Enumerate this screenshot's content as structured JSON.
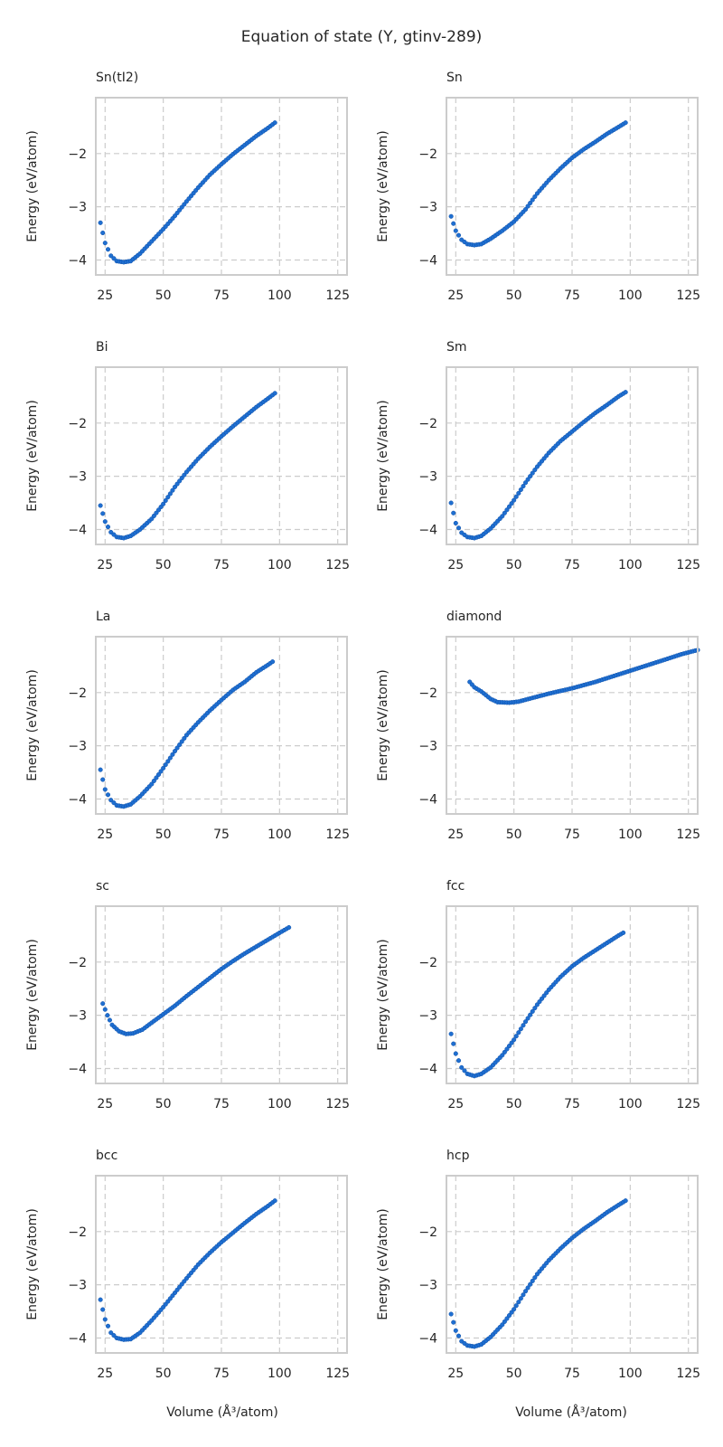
{
  "figure": {
    "title": "Equation of state (Y, gtinv-289)",
    "xlabel": "Volume (Å³/atom)",
    "ylabel": "Energy (eV/atom)",
    "marker_color": "#1f6fd1"
  },
  "chart_data": [
    {
      "type": "scatter",
      "title": "Sn(tI2)",
      "xlim": [
        21,
        129
      ],
      "ylim": [
        -4.28,
        -0.95
      ],
      "xticks": [
        25,
        50,
        75,
        100,
        125
      ],
      "yticks": [
        -4,
        -3,
        -2
      ],
      "xtick_labels": [
        "25",
        "50",
        "75",
        "100",
        "125"
      ],
      "ytick_labels": [
        "−4",
        "−3",
        "−2"
      ],
      "grid": true,
      "anchors": [
        [
          23,
          -3.3
        ],
        [
          25,
          -3.68
        ],
        [
          27.5,
          -3.92
        ],
        [
          30,
          -4.02
        ],
        [
          33,
          -4.04
        ],
        [
          36,
          -4.02
        ],
        [
          40,
          -3.88
        ],
        [
          45,
          -3.65
        ],
        [
          50,
          -3.42
        ],
        [
          55,
          -3.17
        ],
        [
          60,
          -2.9
        ],
        [
          65,
          -2.64
        ],
        [
          70,
          -2.4
        ],
        [
          75,
          -2.2
        ],
        [
          80,
          -2.01
        ],
        [
          85,
          -1.84
        ],
        [
          90,
          -1.67
        ],
        [
          95,
          -1.52
        ],
        [
          98,
          -1.42
        ]
      ]
    },
    {
      "type": "scatter",
      "title": "Sn",
      "xlim": [
        21,
        129
      ],
      "ylim": [
        -4.28,
        -0.95
      ],
      "xticks": [
        25,
        50,
        75,
        100,
        125
      ],
      "yticks": [
        -4,
        -3,
        -2
      ],
      "xtick_labels": [
        "25",
        "50",
        "75",
        "100",
        "125"
      ],
      "ytick_labels": [
        "−4",
        "−3",
        "−2"
      ],
      "grid": true,
      "anchors": [
        [
          23,
          -3.18
        ],
        [
          25,
          -3.45
        ],
        [
          27.5,
          -3.62
        ],
        [
          30,
          -3.7
        ],
        [
          33,
          -3.72
        ],
        [
          36,
          -3.7
        ],
        [
          40,
          -3.6
        ],
        [
          45,
          -3.45
        ],
        [
          50,
          -3.28
        ],
        [
          55,
          -3.05
        ],
        [
          60,
          -2.75
        ],
        [
          65,
          -2.5
        ],
        [
          70,
          -2.28
        ],
        [
          75,
          -2.08
        ],
        [
          80,
          -1.92
        ],
        [
          85,
          -1.78
        ],
        [
          90,
          -1.63
        ],
        [
          95,
          -1.5
        ],
        [
          98,
          -1.42
        ]
      ]
    },
    {
      "type": "scatter",
      "title": "Bi",
      "xlim": [
        21,
        129
      ],
      "ylim": [
        -4.28,
        -0.95
      ],
      "xticks": [
        25,
        50,
        75,
        100,
        125
      ],
      "yticks": [
        -4,
        -3,
        -2
      ],
      "xtick_labels": [
        "25",
        "50",
        "75",
        "100",
        "125"
      ],
      "ytick_labels": [
        "−4",
        "−3",
        "−2"
      ],
      "grid": true,
      "anchors": [
        [
          23,
          -3.55
        ],
        [
          25,
          -3.85
        ],
        [
          27.5,
          -4.05
        ],
        [
          30,
          -4.14
        ],
        [
          33,
          -4.16
        ],
        [
          36,
          -4.12
        ],
        [
          40,
          -4.0
        ],
        [
          45,
          -3.8
        ],
        [
          50,
          -3.52
        ],
        [
          55,
          -3.2
        ],
        [
          60,
          -2.92
        ],
        [
          65,
          -2.67
        ],
        [
          70,
          -2.45
        ],
        [
          75,
          -2.25
        ],
        [
          80,
          -2.06
        ],
        [
          85,
          -1.88
        ],
        [
          90,
          -1.7
        ],
        [
          95,
          -1.54
        ],
        [
          98,
          -1.44
        ]
      ]
    },
    {
      "type": "scatter",
      "title": "Sm",
      "xlim": [
        21,
        129
      ],
      "ylim": [
        -4.28,
        -0.95
      ],
      "xticks": [
        25,
        50,
        75,
        100,
        125
      ],
      "yticks": [
        -4,
        -3,
        -2
      ],
      "xtick_labels": [
        "25",
        "50",
        "75",
        "100",
        "125"
      ],
      "ytick_labels": [
        "−4",
        "−3",
        "−2"
      ],
      "grid": true,
      "anchors": [
        [
          23,
          -3.5
        ],
        [
          25,
          -3.88
        ],
        [
          27.5,
          -4.06
        ],
        [
          30,
          -4.14
        ],
        [
          33,
          -4.16
        ],
        [
          36,
          -4.12
        ],
        [
          40,
          -3.98
        ],
        [
          45,
          -3.75
        ],
        [
          50,
          -3.45
        ],
        [
          55,
          -3.12
        ],
        [
          60,
          -2.82
        ],
        [
          65,
          -2.56
        ],
        [
          70,
          -2.34
        ],
        [
          75,
          -2.16
        ],
        [
          80,
          -1.98
        ],
        [
          85,
          -1.81
        ],
        [
          90,
          -1.66
        ],
        [
          95,
          -1.5
        ],
        [
          98,
          -1.42
        ]
      ]
    },
    {
      "type": "scatter",
      "title": "La",
      "xlim": [
        21,
        129
      ],
      "ylim": [
        -4.28,
        -0.95
      ],
      "xticks": [
        25,
        50,
        75,
        100,
        125
      ],
      "yticks": [
        -4,
        -3,
        -2
      ],
      "xtick_labels": [
        "25",
        "50",
        "75",
        "100",
        "125"
      ],
      "ytick_labels": [
        "−4",
        "−3",
        "−2"
      ],
      "grid": true,
      "anchors": [
        [
          23,
          -3.45
        ],
        [
          25,
          -3.82
        ],
        [
          27.5,
          -4.02
        ],
        [
          30,
          -4.12
        ],
        [
          33,
          -4.14
        ],
        [
          36,
          -4.1
        ],
        [
          40,
          -3.95
        ],
        [
          45,
          -3.72
        ],
        [
          50,
          -3.42
        ],
        [
          55,
          -3.1
        ],
        [
          60,
          -2.8
        ],
        [
          65,
          -2.56
        ],
        [
          70,
          -2.34
        ],
        [
          75,
          -2.14
        ],
        [
          80,
          -1.95
        ],
        [
          85,
          -1.8
        ],
        [
          90,
          -1.62
        ],
        [
          95,
          -1.48
        ],
        [
          97,
          -1.42
        ]
      ]
    },
    {
      "type": "scatter",
      "title": "diamond",
      "xlim": [
        21,
        129
      ],
      "ylim": [
        -4.28,
        -0.95
      ],
      "xticks": [
        25,
        50,
        75,
        100,
        125
      ],
      "yticks": [
        -4,
        -3,
        -2
      ],
      "xtick_labels": [
        "25",
        "50",
        "75",
        "100",
        "125"
      ],
      "ytick_labels": [
        "−4",
        "−3",
        "−2"
      ],
      "grid": true,
      "anchors": [
        [
          31,
          -1.8
        ],
        [
          33,
          -1.9
        ],
        [
          36,
          -1.98
        ],
        [
          40,
          -2.12
        ],
        [
          43,
          -2.18
        ],
        [
          48,
          -2.19
        ],
        [
          52,
          -2.17
        ],
        [
          58,
          -2.1
        ],
        [
          65,
          -2.02
        ],
        [
          75,
          -1.92
        ],
        [
          85,
          -1.8
        ],
        [
          95,
          -1.66
        ],
        [
          105,
          -1.52
        ],
        [
          115,
          -1.38
        ],
        [
          122,
          -1.28
        ],
        [
          129,
          -1.2
        ]
      ]
    },
    {
      "type": "scatter",
      "title": "sc",
      "xlim": [
        21,
        129
      ],
      "ylim": [
        -4.28,
        -0.95
      ],
      "xticks": [
        25,
        50,
        75,
        100,
        125
      ],
      "yticks": [
        -4,
        -3,
        -2
      ],
      "xtick_labels": [
        "25",
        "50",
        "75",
        "100",
        "125"
      ],
      "ytick_labels": [
        "−4",
        "−3",
        "−2"
      ],
      "grid": true,
      "anchors": [
        [
          24,
          -2.78
        ],
        [
          26,
          -3.0
        ],
        [
          28,
          -3.18
        ],
        [
          31,
          -3.3
        ],
        [
          34,
          -3.35
        ],
        [
          37,
          -3.34
        ],
        [
          41,
          -3.27
        ],
        [
          45,
          -3.14
        ],
        [
          50,
          -2.98
        ],
        [
          55,
          -2.82
        ],
        [
          60,
          -2.64
        ],
        [
          65,
          -2.47
        ],
        [
          70,
          -2.3
        ],
        [
          75,
          -2.13
        ],
        [
          80,
          -1.98
        ],
        [
          85,
          -1.84
        ],
        [
          90,
          -1.71
        ],
        [
          95,
          -1.58
        ],
        [
          100,
          -1.45
        ],
        [
          104,
          -1.35
        ]
      ]
    },
    {
      "type": "scatter",
      "title": "fcc",
      "xlim": [
        21,
        129
      ],
      "ylim": [
        -4.28,
        -0.95
      ],
      "xticks": [
        25,
        50,
        75,
        100,
        125
      ],
      "yticks": [
        -4,
        -3,
        -2
      ],
      "xtick_labels": [
        "25",
        "50",
        "75",
        "100",
        "125"
      ],
      "ytick_labels": [
        "−4",
        "−3",
        "−2"
      ],
      "grid": true,
      "anchors": [
        [
          23,
          -3.35
        ],
        [
          25,
          -3.72
        ],
        [
          27.5,
          -3.98
        ],
        [
          30,
          -4.1
        ],
        [
          33,
          -4.14
        ],
        [
          36,
          -4.1
        ],
        [
          40,
          -3.98
        ],
        [
          45,
          -3.75
        ],
        [
          50,
          -3.46
        ],
        [
          55,
          -3.12
        ],
        [
          60,
          -2.8
        ],
        [
          65,
          -2.52
        ],
        [
          70,
          -2.28
        ],
        [
          75,
          -2.08
        ],
        [
          80,
          -1.92
        ],
        [
          85,
          -1.78
        ],
        [
          90,
          -1.64
        ],
        [
          95,
          -1.5
        ],
        [
          97,
          -1.45
        ]
      ]
    },
    {
      "type": "scatter",
      "title": "bcc",
      "xlim": [
        21,
        129
      ],
      "ylim": [
        -4.28,
        -0.95
      ],
      "xticks": [
        25,
        50,
        75,
        100,
        125
      ],
      "yticks": [
        -4,
        -3,
        -2
      ],
      "xtick_labels": [
        "25",
        "50",
        "75",
        "100",
        "125"
      ],
      "ytick_labels": [
        "−4",
        "−3",
        "−2"
      ],
      "grid": true,
      "anchors": [
        [
          23,
          -3.28
        ],
        [
          25,
          -3.65
        ],
        [
          27.5,
          -3.9
        ],
        [
          30,
          -4.0
        ],
        [
          33,
          -4.03
        ],
        [
          36,
          -4.02
        ],
        [
          40,
          -3.9
        ],
        [
          45,
          -3.67
        ],
        [
          50,
          -3.42
        ],
        [
          55,
          -3.15
        ],
        [
          60,
          -2.88
        ],
        [
          65,
          -2.62
        ],
        [
          70,
          -2.4
        ],
        [
          75,
          -2.2
        ],
        [
          80,
          -2.02
        ],
        [
          85,
          -1.84
        ],
        [
          90,
          -1.67
        ],
        [
          95,
          -1.52
        ],
        [
          98,
          -1.42
        ]
      ]
    },
    {
      "type": "scatter",
      "title": "hcp",
      "xlim": [
        21,
        129
      ],
      "ylim": [
        -4.28,
        -0.95
      ],
      "xticks": [
        25,
        50,
        75,
        100,
        125
      ],
      "yticks": [
        -4,
        -3,
        -2
      ],
      "xtick_labels": [
        "25",
        "50",
        "75",
        "100",
        "125"
      ],
      "ytick_labels": [
        "−4",
        "−3",
        "−2"
      ],
      "grid": true,
      "anchors": [
        [
          23,
          -3.55
        ],
        [
          25,
          -3.86
        ],
        [
          27.5,
          -4.06
        ],
        [
          30,
          -4.14
        ],
        [
          33,
          -4.16
        ],
        [
          36,
          -4.12
        ],
        [
          40,
          -3.98
        ],
        [
          45,
          -3.75
        ],
        [
          50,
          -3.46
        ],
        [
          55,
          -3.12
        ],
        [
          60,
          -2.8
        ],
        [
          65,
          -2.54
        ],
        [
          70,
          -2.32
        ],
        [
          75,
          -2.12
        ],
        [
          80,
          -1.95
        ],
        [
          85,
          -1.8
        ],
        [
          90,
          -1.64
        ],
        [
          95,
          -1.5
        ],
        [
          98,
          -1.42
        ]
      ]
    }
  ]
}
